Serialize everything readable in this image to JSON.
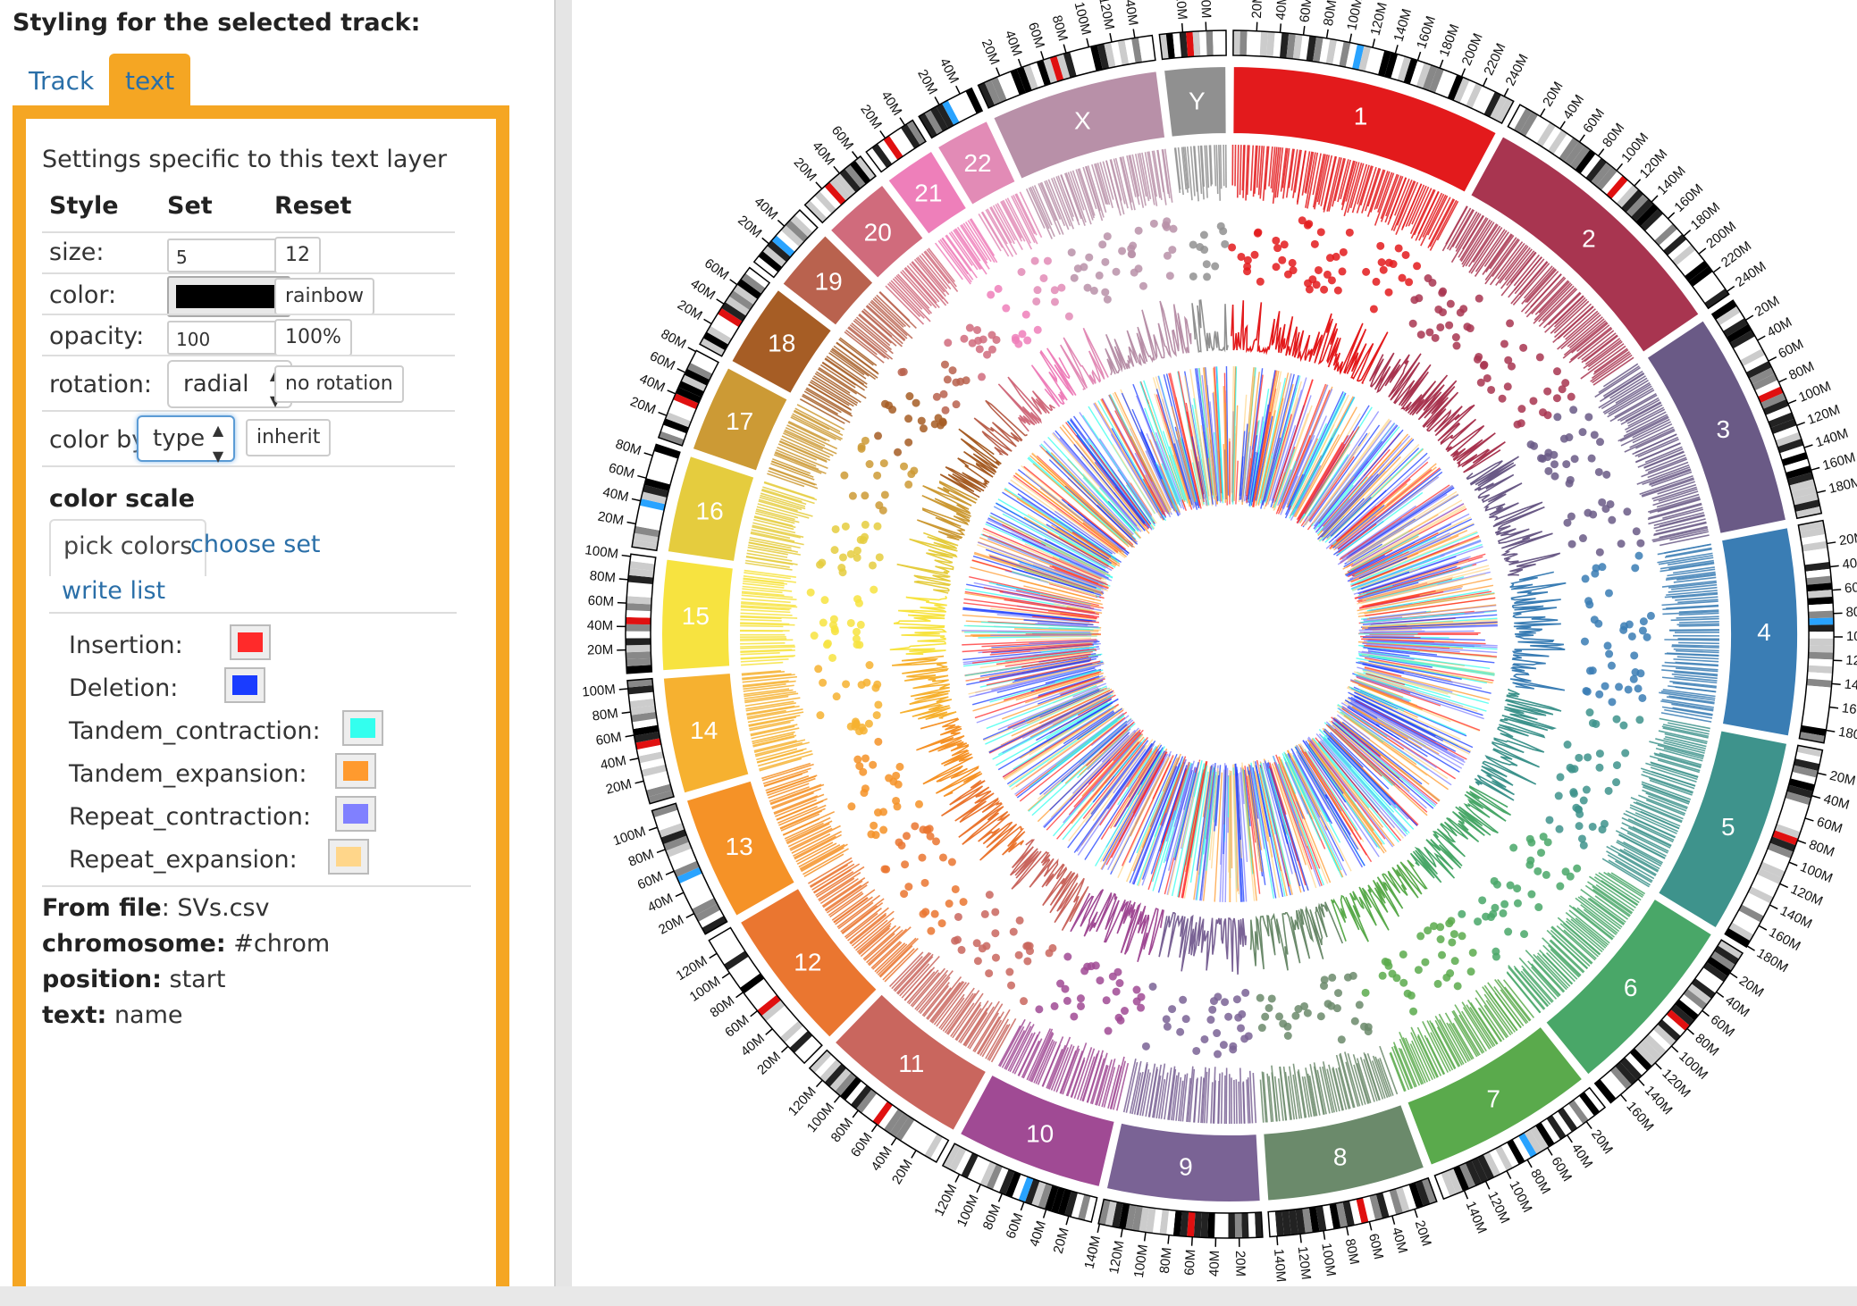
{
  "panel": {
    "heading": "Styling for the selected track:",
    "tabs": [
      "Track",
      "text"
    ],
    "description": "Settings specific to this text layer",
    "columns": {
      "style": "Style",
      "set": "Set",
      "reset": "Reset"
    },
    "size": {
      "label": "size:",
      "value": "5",
      "reset": "12"
    },
    "color": {
      "label": "color:",
      "swatch": "#000000",
      "reset": "rainbow"
    },
    "opacity": {
      "label": "opacity:",
      "value": "100",
      "reset": "100%"
    },
    "rotation": {
      "label": "rotation:",
      "value": "radial",
      "reset": "no rotation"
    },
    "color_by": {
      "label": "color by:",
      "value": "type",
      "reset": "inherit"
    },
    "color_scale": {
      "title": "color scale",
      "tabs": [
        "pick colors",
        "choose set",
        "write list"
      ],
      "entries": [
        {
          "label": "Insertion:",
          "color": "#ff2a2a"
        },
        {
          "label": "Deletion:",
          "color": "#1a3cff"
        },
        {
          "label": "Tandem_contraction:",
          "color": "#33ffee"
        },
        {
          "label": "Tandem_expansion:",
          "color": "#ff9a2e"
        },
        {
          "label": "Repeat_contraction:",
          "color": "#8080ff"
        },
        {
          "label": "Repeat_expansion:",
          "color": "#ffd68a"
        }
      ]
    },
    "info": {
      "from_file_label": "From file",
      "from_file": "SVs.csv",
      "chromosome_label": "chromosome:",
      "chromosome": "#chrom",
      "position_label": "position:",
      "position": "start",
      "text_label": "text:",
      "text": "name"
    }
  },
  "chart_data": {
    "type": "circos",
    "chromosomes": [
      {
        "name": "1",
        "length": 249,
        "color": "#e31a1c"
      },
      {
        "name": "2",
        "length": 243,
        "color": "#a83550"
      },
      {
        "name": "3",
        "length": 198,
        "color": "#6a5a86"
      },
      {
        "name": "4",
        "length": 191,
        "color": "#3a7db4"
      },
      {
        "name": "5",
        "length": 181,
        "color": "#3e938c"
      },
      {
        "name": "6",
        "length": 171,
        "color": "#49a768"
      },
      {
        "name": "7",
        "length": 159,
        "color": "#5aaa4c"
      },
      {
        "name": "8",
        "length": 146,
        "color": "#6b8a6b"
      },
      {
        "name": "9",
        "length": 141,
        "color": "#7a6395"
      },
      {
        "name": "10",
        "length": 136,
        "color": "#a04a94"
      },
      {
        "name": "11",
        "length": 135,
        "color": "#c9665e"
      },
      {
        "name": "12",
        "length": 133,
        "color": "#ea7630"
      },
      {
        "name": "13",
        "length": 115,
        "color": "#f59227"
      },
      {
        "name": "14",
        "length": 107,
        "color": "#f6b130"
      },
      {
        "name": "15",
        "length": 102,
        "color": "#f7e340"
      },
      {
        "name": "16",
        "length": 90,
        "color": "#e5cc3e"
      },
      {
        "name": "17",
        "length": 81,
        "color": "#cc9a35"
      },
      {
        "name": "18",
        "length": 78,
        "color": "#a65d25"
      },
      {
        "name": "19",
        "length": 59,
        "color": "#b9624e"
      },
      {
        "name": "20",
        "length": 63,
        "color": "#d06b7c"
      },
      {
        "name": "21",
        "length": 48,
        "color": "#ee7fba"
      },
      {
        "name": "22",
        "length": 51,
        "color": "#e28bb6"
      },
      {
        "name": "X",
        "length": 155,
        "color": "#b890a8"
      },
      {
        "name": "Y",
        "length": 57,
        "color": "#909090"
      }
    ],
    "tick_unit": "M",
    "tick_step": 20
  }
}
